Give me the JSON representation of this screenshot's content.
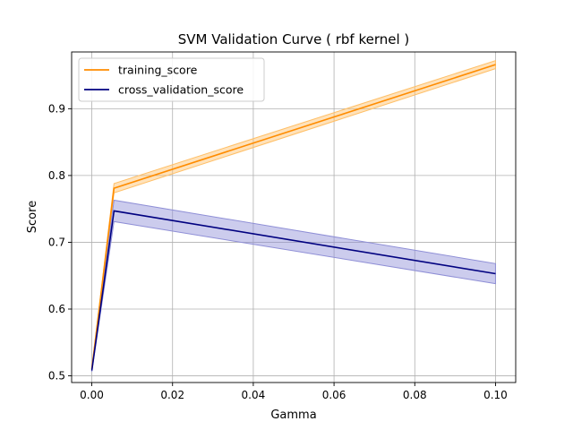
{
  "chart_data": {
    "type": "line",
    "title": "SVM Validation Curve ( rbf kernel )",
    "xlabel": "Gamma",
    "ylabel": "Score",
    "xlim": [
      -0.005,
      0.105
    ],
    "ylim": [
      0.49,
      0.985
    ],
    "xticks": [
      0.0,
      0.02,
      0.04,
      0.06,
      0.08,
      0.1
    ],
    "xtick_labels": [
      "0.00",
      "0.02",
      "0.04",
      "0.06",
      "0.08",
      "0.10"
    ],
    "yticks": [
      0.5,
      0.6,
      0.7,
      0.8,
      0.9
    ],
    "ytick_labels": [
      "0.5",
      "0.6",
      "0.7",
      "0.8",
      "0.9"
    ],
    "grid": true,
    "legend_position": "top-left",
    "x": [
      0.0,
      0.0055,
      0.1
    ],
    "series": [
      {
        "name": "training_score",
        "color": "#ff8c00",
        "band_color": "#ffbf66",
        "values": [
          0.51,
          0.781,
          0.966
        ],
        "lower": [
          0.508,
          0.774,
          0.96
        ],
        "upper": [
          0.512,
          0.788,
          0.972
        ]
      },
      {
        "name": "cross_validation_score",
        "color": "#000080",
        "band_color": "#8f8fd6",
        "values": [
          0.508,
          0.747,
          0.653
        ],
        "lower": [
          0.506,
          0.731,
          0.638
        ],
        "upper": [
          0.51,
          0.763,
          0.668
        ]
      }
    ]
  }
}
